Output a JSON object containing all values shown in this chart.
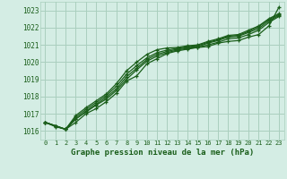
{
  "title": "Graphe pression niveau de la mer (hPa)",
  "background_color": "#d4ede4",
  "grid_color": "#aacfbe",
  "line_color": "#1a5e1a",
  "xlim": [
    -0.5,
    23.5
  ],
  "ylim": [
    1015.5,
    1023.5
  ],
  "yticks": [
    1016,
    1017,
    1018,
    1019,
    1020,
    1021,
    1022,
    1023
  ],
  "xticks": [
    0,
    1,
    2,
    3,
    4,
    5,
    6,
    7,
    8,
    9,
    10,
    11,
    12,
    13,
    14,
    15,
    16,
    17,
    18,
    19,
    20,
    21,
    22,
    23
  ],
  "series": [
    [
      1016.5,
      1016.3,
      1016.1,
      1016.5,
      1017.0,
      1017.3,
      1017.7,
      1018.2,
      1018.9,
      1019.2,
      1019.9,
      1020.2,
      1020.5,
      1020.65,
      1020.75,
      1020.85,
      1020.9,
      1021.1,
      1021.2,
      1021.25,
      1021.45,
      1021.6,
      1022.1,
      1023.2
    ],
    [
      1016.5,
      1016.3,
      1016.1,
      1016.7,
      1017.1,
      1017.5,
      1017.85,
      1018.35,
      1019.0,
      1019.55,
      1020.05,
      1020.35,
      1020.55,
      1020.7,
      1020.8,
      1020.85,
      1021.0,
      1021.15,
      1021.35,
      1021.4,
      1021.6,
      1021.85,
      1022.3,
      1022.65
    ],
    [
      1016.5,
      1016.3,
      1016.1,
      1016.7,
      1017.15,
      1017.55,
      1017.95,
      1018.45,
      1019.15,
      1019.65,
      1020.15,
      1020.45,
      1020.62,
      1020.75,
      1020.85,
      1020.9,
      1021.1,
      1021.25,
      1021.45,
      1021.5,
      1021.72,
      1021.95,
      1022.4,
      1022.7
    ],
    [
      1016.5,
      1016.3,
      1016.1,
      1016.8,
      1017.25,
      1017.65,
      1018.05,
      1018.6,
      1019.3,
      1019.8,
      1020.25,
      1020.55,
      1020.7,
      1020.8,
      1020.9,
      1020.95,
      1021.15,
      1021.3,
      1021.5,
      1021.55,
      1021.78,
      1022.05,
      1022.48,
      1022.75
    ],
    [
      1016.5,
      1016.25,
      1016.1,
      1016.9,
      1017.35,
      1017.75,
      1018.15,
      1018.75,
      1019.5,
      1020.0,
      1020.45,
      1020.72,
      1020.82,
      1020.85,
      1020.95,
      1021.0,
      1021.2,
      1021.35,
      1021.55,
      1021.6,
      1021.85,
      1022.1,
      1022.52,
      1022.82
    ]
  ]
}
